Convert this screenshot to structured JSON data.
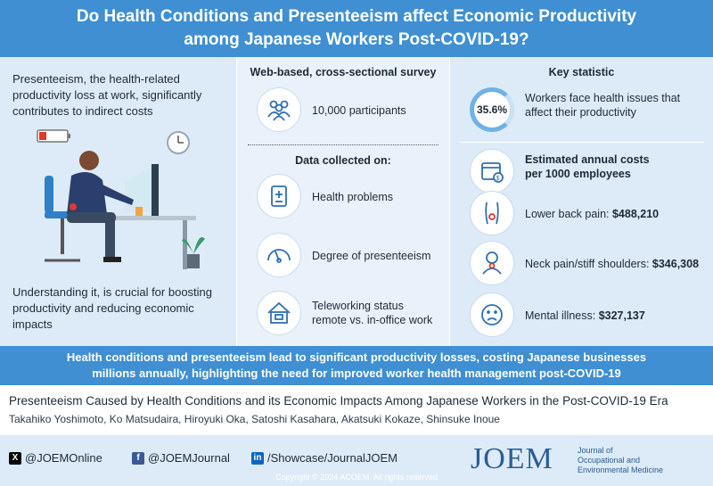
{
  "header": {
    "title_line1": "Do Health Conditions and Presenteeism affect Economic Productivity",
    "title_line2": "among Japanese Workers Post-COVID-19?"
  },
  "left": {
    "intro": "Presenteeism, the health-related productivity loss at work, significantly contributes to indirect costs",
    "conclusion": "Understanding it, is crucial for boosting productivity and reducing economic impacts"
  },
  "middle": {
    "survey_title": "Web-based, cross-sectional survey",
    "participants": "10,000 participants",
    "data_title": "Data collected on:",
    "items": [
      {
        "label": "Health problems",
        "icon": "clipboard-icon"
      },
      {
        "label": "Degree of presenteeism",
        "icon": "gauge-icon"
      },
      {
        "label_line1": "Teleworking status",
        "label_line2": "remote vs. in-office work",
        "icon": "home-office-icon"
      }
    ]
  },
  "right": {
    "key_title": "Key statistic",
    "key_value": "35.6%",
    "key_text": "Workers face health issues that affect their productivity",
    "costs_title_line1": "Estimated annual costs",
    "costs_title_line2": "per 1000 employees",
    "costs": [
      {
        "label": "Lower back pain: ",
        "value": "$488,210",
        "icon": "back-pain-icon"
      },
      {
        "label": "Neck pain/stiff shoulders: ",
        "value": "$346,308",
        "icon": "neck-pain-icon"
      },
      {
        "label": "Mental illness: ",
        "value": "$327,137",
        "icon": "mental-illness-icon"
      }
    ]
  },
  "banner": {
    "line1": "Health conditions and presenteeism lead to significant productivity losses, costing Japanese businesses",
    "line2": "millions annually, highlighting the need for improved worker health management post-COVID-19"
  },
  "citation": {
    "title": "Presenteeism Caused by Health Conditions and its Economic Impacts Among Japanese Workers in the Post-COVID-19 Era",
    "authors": "Takahiko Yoshimoto, Ko Matsudaira, Hiroyuki Oka, Satoshi Kasahara, Akatsuki Kokaze, Shinsuke Inoue"
  },
  "footer": {
    "twitter": "@JOEMOnline",
    "facebook": "@JOEMJournal",
    "linkedin": "/Showcase/JournalJOEM",
    "logo": "JOEM",
    "journal_line1": "Journal of",
    "journal_line2": "Occupational and",
    "journal_line3": "Environmental Medicine",
    "copyright": "Copyright © 2024 ACOEM. All rights reserved"
  },
  "colors": {
    "header_blue": "#3f8fd2",
    "panel_light": "#dcebf7",
    "accent": "#6fb2e6",
    "logo_blue": "#2a5d95"
  }
}
